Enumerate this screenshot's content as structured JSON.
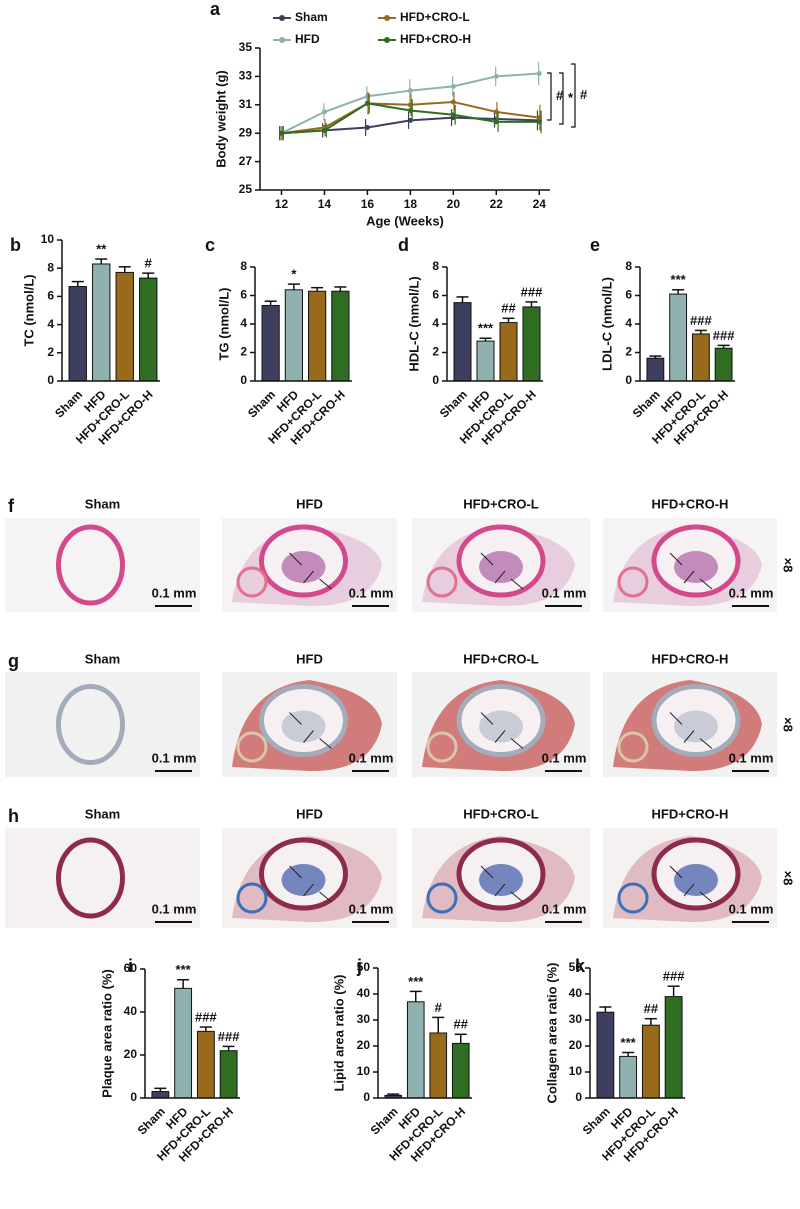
{
  "chart_data": [
    {
      "type": "line",
      "panel": "a",
      "x": [
        12,
        14,
        16,
        18,
        20,
        22,
        24
      ],
      "xlim": [
        11,
        24.5
      ],
      "xticks": [
        12,
        14,
        16,
        18,
        20,
        22,
        24
      ],
      "ylim": [
        25,
        35
      ],
      "yticks": [
        25,
        27,
        29,
        31,
        33,
        35
      ],
      "xlabel": "Age (Weeks)",
      "ylabel": "Body weight (g)",
      "series": [
        {
          "name": "Sham",
          "color": "#3e3f5e",
          "values": [
            29,
            29.2,
            29.4,
            29.9,
            30.1,
            30,
            29.9
          ],
          "errors": [
            0.5,
            0.5,
            0.6,
            0.6,
            0.6,
            0.6,
            0.7
          ]
        },
        {
          "name": "HFD",
          "color": "#8fb2b0",
          "values": [
            29,
            30.5,
            31.6,
            32,
            32.3,
            33,
            33.2
          ],
          "errors": [
            0.5,
            0.6,
            0.7,
            0.8,
            0.7,
            0.7,
            0.8
          ]
        },
        {
          "name": "HFD+CRO-L",
          "color": "#9a6a1c",
          "values": [
            29,
            29.4,
            31.1,
            31,
            31.2,
            30.5,
            30.1
          ],
          "errors": [
            0.5,
            0.6,
            0.8,
            0.8,
            0.7,
            0.7,
            0.9
          ]
        },
        {
          "name": "HFD+CRO-H",
          "color": "#2f6e22",
          "values": [
            29,
            29.2,
            31.1,
            30.6,
            30.3,
            29.8,
            29.8
          ],
          "errors": [
            0.5,
            0.5,
            0.7,
            0.8,
            0.7,
            0.7,
            0.8
          ]
        }
      ],
      "annotations": [
        "#",
        "*",
        "#"
      ]
    },
    {
      "type": "bar",
      "panel": "b",
      "ylabel": "TC (nmol/L)",
      "categories": [
        "Sham",
        "HFD",
        "HFD+CRO-L",
        "HFD+CRO-H"
      ],
      "colors": [
        "#3e3f5e",
        "#8fb2b0",
        "#9a6a1c",
        "#2f6e22"
      ],
      "values": [
        6.7,
        8.3,
        7.7,
        7.3
      ],
      "errors": [
        0.35,
        0.35,
        0.4,
        0.35
      ],
      "significance": [
        null,
        "**",
        null,
        "#"
      ],
      "ylim": [
        0,
        10
      ],
      "yticks": [
        0,
        2,
        4,
        6,
        8,
        10
      ]
    },
    {
      "type": "bar",
      "panel": "c",
      "ylabel": "TG (nmol/L)",
      "categories": [
        "Sham",
        "HFD",
        "HFD+CRO-L",
        "HFD+CRO-H"
      ],
      "colors": [
        "#3e3f5e",
        "#8fb2b0",
        "#9a6a1c",
        "#2f6e22"
      ],
      "values": [
        5.3,
        6.4,
        6.3,
        6.3
      ],
      "errors": [
        0.3,
        0.4,
        0.25,
        0.3
      ],
      "significance": [
        null,
        "*",
        null,
        null
      ],
      "ylim": [
        0,
        8
      ],
      "yticks": [
        0,
        2,
        4,
        6,
        8
      ]
    },
    {
      "type": "bar",
      "panel": "d",
      "ylabel": "HDL-C (nmol/L)",
      "categories": [
        "Sham",
        "HFD",
        "HFD+CRO-L",
        "HFD+CRO-H"
      ],
      "colors": [
        "#3e3f5e",
        "#8fb2b0",
        "#9a6a1c",
        "#2f6e22"
      ],
      "values": [
        5.5,
        2.8,
        4.1,
        5.2
      ],
      "errors": [
        0.4,
        0.2,
        0.3,
        0.35
      ],
      "significance": [
        null,
        "***",
        "##",
        "###"
      ],
      "ylim": [
        0,
        8
      ],
      "yticks": [
        0,
        2,
        4,
        6,
        8
      ]
    },
    {
      "type": "bar",
      "panel": "e",
      "ylabel": "LDL-C (nmol/L)",
      "categories": [
        "Sham",
        "HFD",
        "HFD+CRO-L",
        "HFD+CRO-H"
      ],
      "colors": [
        "#3e3f5e",
        "#8fb2b0",
        "#9a6a1c",
        "#2f6e22"
      ],
      "values": [
        1.6,
        6.1,
        3.3,
        2.3
      ],
      "errors": [
        0.15,
        0.3,
        0.25,
        0.2
      ],
      "significance": [
        null,
        "***",
        "###",
        "###"
      ],
      "ylim": [
        0,
        8
      ],
      "yticks": [
        0,
        2,
        4,
        6,
        8
      ]
    },
    {
      "type": "bar",
      "panel": "i",
      "ylabel": "Plaque area ratio (%)",
      "categories": [
        "Sham",
        "HFD",
        "HFD+CRO-L",
        "HFD+CRO-H"
      ],
      "colors": [
        "#3e3f5e",
        "#8fb2b0",
        "#9a6a1c",
        "#2f6e22"
      ],
      "values": [
        3,
        51,
        31,
        22
      ],
      "errors": [
        1.5,
        4,
        2,
        2
      ],
      "significance": [
        null,
        "***",
        "###",
        "###"
      ],
      "ylim": [
        0,
        60
      ],
      "yticks": [
        0,
        20,
        40,
        60
      ]
    },
    {
      "type": "bar",
      "panel": "j",
      "ylabel": "Lipid area ratio (%)",
      "categories": [
        "Sham",
        "HFD",
        "HFD+CRO-L",
        "HFD+CRO-H"
      ],
      "colors": [
        "#3e3f5e",
        "#8fb2b0",
        "#9a6a1c",
        "#2f6e22"
      ],
      "values": [
        1,
        37,
        25,
        21
      ],
      "errors": [
        0.5,
        4,
        6,
        3.5
      ],
      "significance": [
        null,
        "***",
        "#",
        "##"
      ],
      "ylim": [
        0,
        50
      ],
      "yticks": [
        0,
        10,
        20,
        30,
        40,
        50
      ]
    },
    {
      "type": "bar",
      "panel": "k",
      "ylabel": "Collagen area ratio (%)",
      "categories": [
        "Sham",
        "HFD",
        "HFD+CRO-L",
        "HFD+CRO-H"
      ],
      "colors": [
        "#3e3f5e",
        "#8fb2b0",
        "#9a6a1c",
        "#2f6e22"
      ],
      "values": [
        33,
        16,
        28,
        39
      ],
      "errors": [
        2,
        1.5,
        2.5,
        4
      ],
      "significance": [
        null,
        "***",
        "##",
        "###"
      ],
      "ylim": [
        0,
        50
      ],
      "yticks": [
        0,
        10,
        20,
        30,
        40,
        50
      ]
    }
  ],
  "histology": {
    "columns": [
      "Sham",
      "HFD",
      "HFD+CRO-L",
      "HFD+CRO-H"
    ],
    "rows": [
      {
        "panel": "f",
        "scale_bar": "0.1 mm",
        "magnification": "×8"
      },
      {
        "panel": "g",
        "scale_bar": "0.1 mm",
        "magnification": "×8"
      },
      {
        "panel": "h",
        "scale_bar": "0.1 mm",
        "magnification": "×8"
      }
    ]
  }
}
